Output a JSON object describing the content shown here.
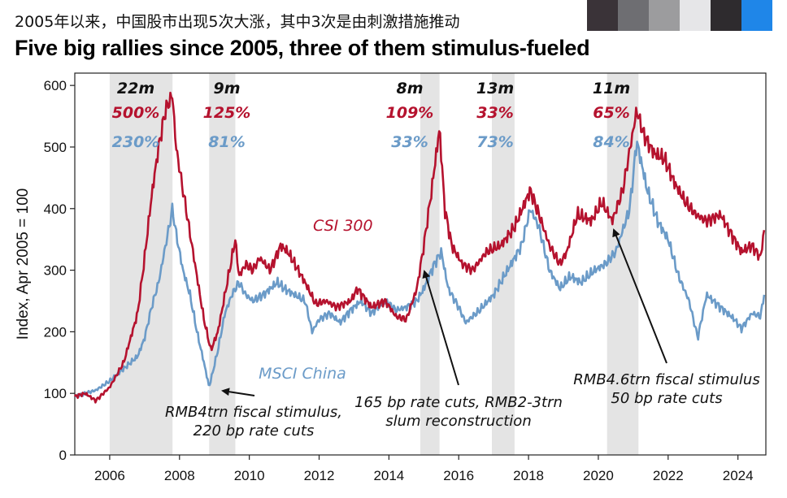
{
  "header": {
    "subtitle_cn": "2005年以来，中国股市出现5次大涨，其中3次是由刺激措施推动",
    "title": "Five big rallies since 2005, three of them stimulus-fueled"
  },
  "colors": {
    "csi": "#b5122e",
    "msci": "#6b9bc8",
    "shade": "#e4e4e4",
    "swatches": [
      "#3a3338",
      "#6e6e72",
      "#9c9c9e",
      "#e6e6e8",
      "#2e2b2e",
      "#1f86e8"
    ]
  },
  "chart_data": {
    "type": "line",
    "ylabel": "Index, Apr 2005 = 100",
    "xlim": [
      2005,
      2024.8
    ],
    "ylim": [
      0,
      620
    ],
    "xticks": [
      2006,
      2008,
      2010,
      2012,
      2014,
      2016,
      2018,
      2020,
      2022,
      2024
    ],
    "yticks": [
      0,
      100,
      200,
      300,
      400,
      500,
      600
    ],
    "shaded_periods": [
      [
        2006.0,
        2007.8
      ],
      [
        2008.85,
        2009.6
      ],
      [
        2014.9,
        2015.45
      ],
      [
        2016.95,
        2017.6
      ],
      [
        2020.25,
        2021.15
      ]
    ],
    "rallies": [
      {
        "duration": "22m",
        "csi": "500%",
        "msci": "230%"
      },
      {
        "duration": "9m",
        "csi": "125%",
        "msci": "81%"
      },
      {
        "duration": "8m",
        "csi": "109%",
        "msci": "33%"
      },
      {
        "duration": "13m",
        "csi": "33%",
        "msci": "73%"
      },
      {
        "duration": "11m",
        "csi": "65%",
        "msci": "84%"
      }
    ],
    "series": [
      {
        "name": "CSI 300",
        "x": [
          2005.0,
          2005.3,
          2005.6,
          2006.0,
          2006.4,
          2006.8,
          2007.0,
          2007.2,
          2007.4,
          2007.6,
          2007.8,
          2007.9,
          2008.1,
          2008.3,
          2008.5,
          2008.7,
          2008.9,
          2009.1,
          2009.3,
          2009.5,
          2009.6,
          2009.7,
          2009.9,
          2010.1,
          2010.3,
          2010.6,
          2010.9,
          2011.1,
          2011.3,
          2011.6,
          2011.9,
          2012.2,
          2012.5,
          2012.9,
          2013.1,
          2013.5,
          2013.9,
          2014.2,
          2014.5,
          2014.8,
          2015.0,
          2015.2,
          2015.45,
          2015.6,
          2015.8,
          2016.1,
          2016.4,
          2016.8,
          2017.2,
          2017.6,
          2017.9,
          2018.05,
          2018.3,
          2018.6,
          2018.9,
          2019.1,
          2019.4,
          2019.8,
          2020.1,
          2020.4,
          2020.7,
          2021.1,
          2021.3,
          2021.6,
          2021.9,
          2022.2,
          2022.5,
          2022.8,
          2023.1,
          2023.5,
          2023.9,
          2024.1,
          2024.4,
          2024.65,
          2024.75
        ],
        "values": [
          95,
          100,
          88,
          110,
          150,
          230,
          320,
          420,
          500,
          560,
          585,
          500,
          430,
          360,
          290,
          220,
          170,
          200,
          260,
          320,
          350,
          290,
          310,
          300,
          320,
          300,
          340,
          330,
          310,
          280,
          245,
          250,
          240,
          250,
          270,
          240,
          250,
          225,
          220,
          270,
          340,
          420,
          530,
          400,
          340,
          310,
          300,
          330,
          340,
          370,
          410,
          430,
          390,
          340,
          310,
          330,
          390,
          380,
          410,
          380,
          430,
          560,
          520,
          490,
          480,
          440,
          410,
          390,
          380,
          390,
          350,
          330,
          340,
          320,
          365
        ]
      },
      {
        "name": "MSCI China",
        "x": [
          2005.0,
          2005.3,
          2005.6,
          2006.0,
          2006.4,
          2006.8,
          2007.0,
          2007.2,
          2007.4,
          2007.6,
          2007.8,
          2007.9,
          2008.1,
          2008.3,
          2008.5,
          2008.7,
          2008.85,
          2009.1,
          2009.3,
          2009.5,
          2009.7,
          2009.9,
          2010.1,
          2010.4,
          2010.8,
          2011.0,
          2011.3,
          2011.6,
          2011.8,
          2012.0,
          2012.3,
          2012.6,
          2012.9,
          2013.2,
          2013.5,
          2013.9,
          2014.2,
          2014.5,
          2014.8,
          2015.0,
          2015.3,
          2015.5,
          2015.7,
          2016.0,
          2016.2,
          2016.6,
          2017.0,
          2017.4,
          2017.8,
          2018.05,
          2018.3,
          2018.6,
          2018.9,
          2019.2,
          2019.5,
          2019.9,
          2020.2,
          2020.5,
          2020.9,
          2021.1,
          2021.4,
          2021.7,
          2022.0,
          2022.3,
          2022.6,
          2022.85,
          2023.1,
          2023.5,
          2023.9,
          2024.1,
          2024.4,
          2024.65,
          2024.75
        ],
        "values": [
          95,
          100,
          105,
          120,
          140,
          160,
          190,
          240,
          280,
          340,
          400,
          360,
          300,
          260,
          200,
          150,
          110,
          170,
          230,
          260,
          280,
          260,
          250,
          260,
          280,
          270,
          260,
          250,
          200,
          220,
          230,
          215,
          235,
          250,
          230,
          250,
          235,
          240,
          250,
          270,
          310,
          330,
          270,
          240,
          215,
          235,
          260,
          300,
          340,
          400,
          370,
          300,
          270,
          290,
          280,
          300,
          310,
          330,
          400,
          510,
          430,
          380,
          350,
          290,
          250,
          190,
          260,
          240,
          220,
          205,
          230,
          225,
          260
        ]
      }
    ],
    "series_labels": {
      "csi": "CSI 300",
      "msci": "MSCI China"
    },
    "annotations": [
      {
        "lines": [
          "RMB4trn fiscal stimulus,",
          "220 bp rate cuts"
        ]
      },
      {
        "lines": [
          "165 bp rate cuts, RMB2-3trn",
          "slum reconstruction"
        ]
      },
      {
        "lines": [
          "RMB4.6trn fiscal stimulus",
          "50 bp rate cuts"
        ]
      }
    ]
  }
}
